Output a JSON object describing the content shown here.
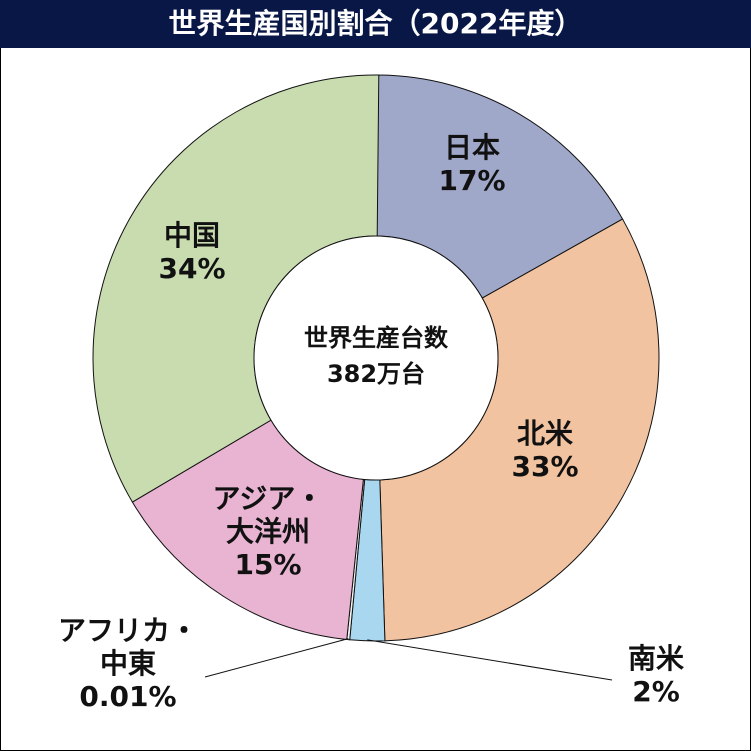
{
  "title": "世界生産国別割合（2022年度）",
  "center": {
    "line1": "世界生産台数",
    "line2": "382万台"
  },
  "chart_data": {
    "type": "pie",
    "title": "世界生産国別割合（2022年度）",
    "total_label": "世界生産台数 382万台",
    "slices": [
      {
        "id": "japan",
        "name": "日本",
        "lines": [
          "日本"
        ],
        "pct_label": "17%",
        "value": 17,
        "color": "#9fa8c9"
      },
      {
        "id": "namerica",
        "name": "北米",
        "lines": [
          "北米"
        ],
        "pct_label": "33%",
        "value": 33,
        "color": "#f2c3a0"
      },
      {
        "id": "samerica",
        "name": "南米",
        "lines": [
          "南米"
        ],
        "pct_label": "2%",
        "value": 2,
        "color": "#a9d7ef"
      },
      {
        "id": "africa-me",
        "name": "アフリカ・中東",
        "lines": [
          "アフリカ・",
          "中東"
        ],
        "pct_label": "0.01%",
        "value": 0.01,
        "color": "#f2f2f2"
      },
      {
        "id": "asia",
        "name": "アジア・大洋州",
        "lines": [
          "アジア・",
          "大洋州"
        ],
        "pct_label": "15%",
        "value": 15,
        "color": "#e8b4d2"
      },
      {
        "id": "china",
        "name": "中国",
        "lines": [
          "中国"
        ],
        "pct_label": "34%",
        "value": 34,
        "color": "#c8dcb0"
      }
    ]
  }
}
